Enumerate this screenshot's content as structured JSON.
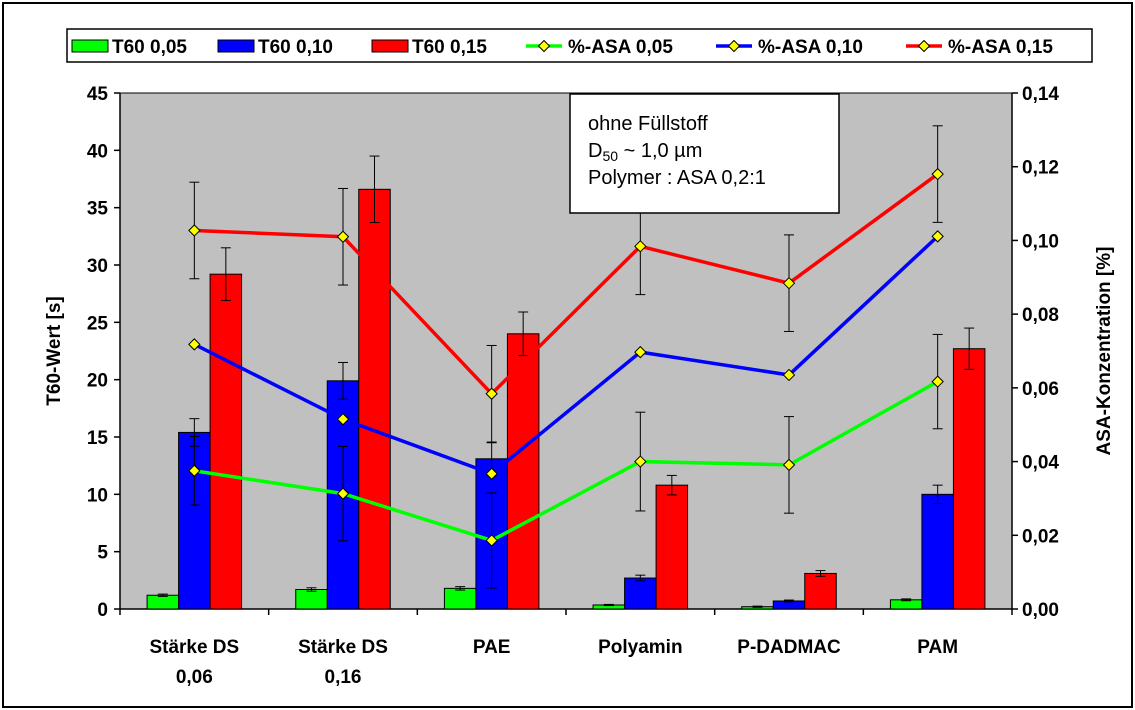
{
  "chart_data": {
    "type": "bar",
    "categories": [
      [
        "Stärke DS",
        "0,06"
      ],
      [
        "Stärke DS",
        "0,16"
      ],
      [
        "PAE"
      ],
      [
        "Polyamin"
      ],
      [
        "P-DADMAC"
      ],
      [
        "PAM"
      ]
    ],
    "ylabel": "T60-Wert [s]",
    "y2label": "ASA-Konzentration [%]",
    "ylim": [
      0,
      45
    ],
    "y2lim": [
      0,
      0.14
    ],
    "yticks": [
      "0",
      "5",
      "10",
      "15",
      "20",
      "25",
      "30",
      "35",
      "40",
      "45"
    ],
    "y2ticks": [
      "0,00",
      "0,02",
      "0,04",
      "0,06",
      "0,08",
      "0,10",
      "0,12",
      "0,14"
    ],
    "grid": false,
    "plot_background": "#c0c0c0",
    "legend_position": "top",
    "bar_series": [
      {
        "name": "T60 0,05",
        "color": "#00ff00",
        "values": [
          1.2,
          1.7,
          1.8,
          0.35,
          0.2,
          0.8
        ],
        "errors": [
          0.1,
          0.15,
          0.15,
          0.05,
          0.05,
          0.08
        ]
      },
      {
        "name": "T60 0,10",
        "color": "#0000ff",
        "values": [
          15.4,
          19.9,
          13.1,
          2.7,
          0.7,
          10.0
        ],
        "errors": [
          1.2,
          1.6,
          1.4,
          0.25,
          0.08,
          0.8
        ]
      },
      {
        "name": "T60 0,15",
        "color": "#ff0000",
        "values": [
          29.2,
          36.6,
          24.0,
          10.8,
          3.1,
          22.7
        ],
        "errors": [
          2.3,
          2.9,
          1.9,
          0.85,
          0.25,
          1.8
        ]
      }
    ],
    "line_series": [
      {
        "name": "%-ASA 0,05",
        "color": "#00ff00",
        "values": [
          0.0375,
          0.0313,
          0.0186,
          0.04,
          0.0391,
          0.0617
        ],
        "errors": [
          0.0093,
          0.0128,
          0.0129,
          0.0134,
          0.0131,
          0.0128
        ]
      },
      {
        "name": "%-ASA 0,10",
        "color": "#0000ff",
        "values": [
          0.0718,
          0.0515,
          0.0367,
          0.0697,
          0.0635,
          0.1011
        ],
        "errors": [
          0.0,
          0.0,
          0.0,
          0.0,
          0.0,
          0.0
        ]
      },
      {
        "name": "%-ASA 0,15",
        "color": "#ff0000",
        "values": [
          0.1027,
          0.101,
          0.0584,
          0.0984,
          0.0884,
          0.118
        ],
        "errors": [
          0.0131,
          0.0131,
          0.0131,
          0.0131,
          0.0131,
          0.0131
        ]
      }
    ],
    "marker": {
      "shape": "diamond",
      "fill": "#ffff00",
      "stroke": "#000000"
    },
    "annotation": {
      "line1": "ohne Füllstoff",
      "line2_prefix": "D",
      "line2_sub": "50",
      "line2_rest": " ~ 1,0 µm",
      "line3": "Polymer : ASA 0,2:1"
    }
  }
}
